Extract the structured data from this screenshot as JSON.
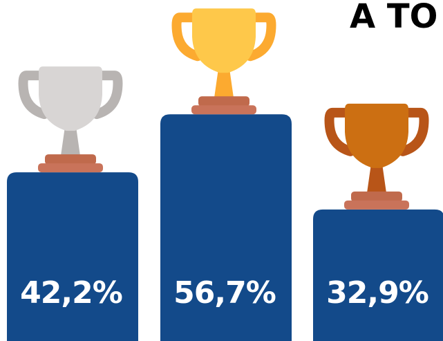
{
  "chart_data": {
    "type": "bar",
    "title": "A TO",
    "categories": [
      null,
      null,
      null
    ],
    "values": [
      42.2,
      56.7,
      32.9
    ],
    "value_labels": [
      "42,2%",
      "56,7%",
      "32,9%"
    ],
    "color": "#134a8a"
  }
}
